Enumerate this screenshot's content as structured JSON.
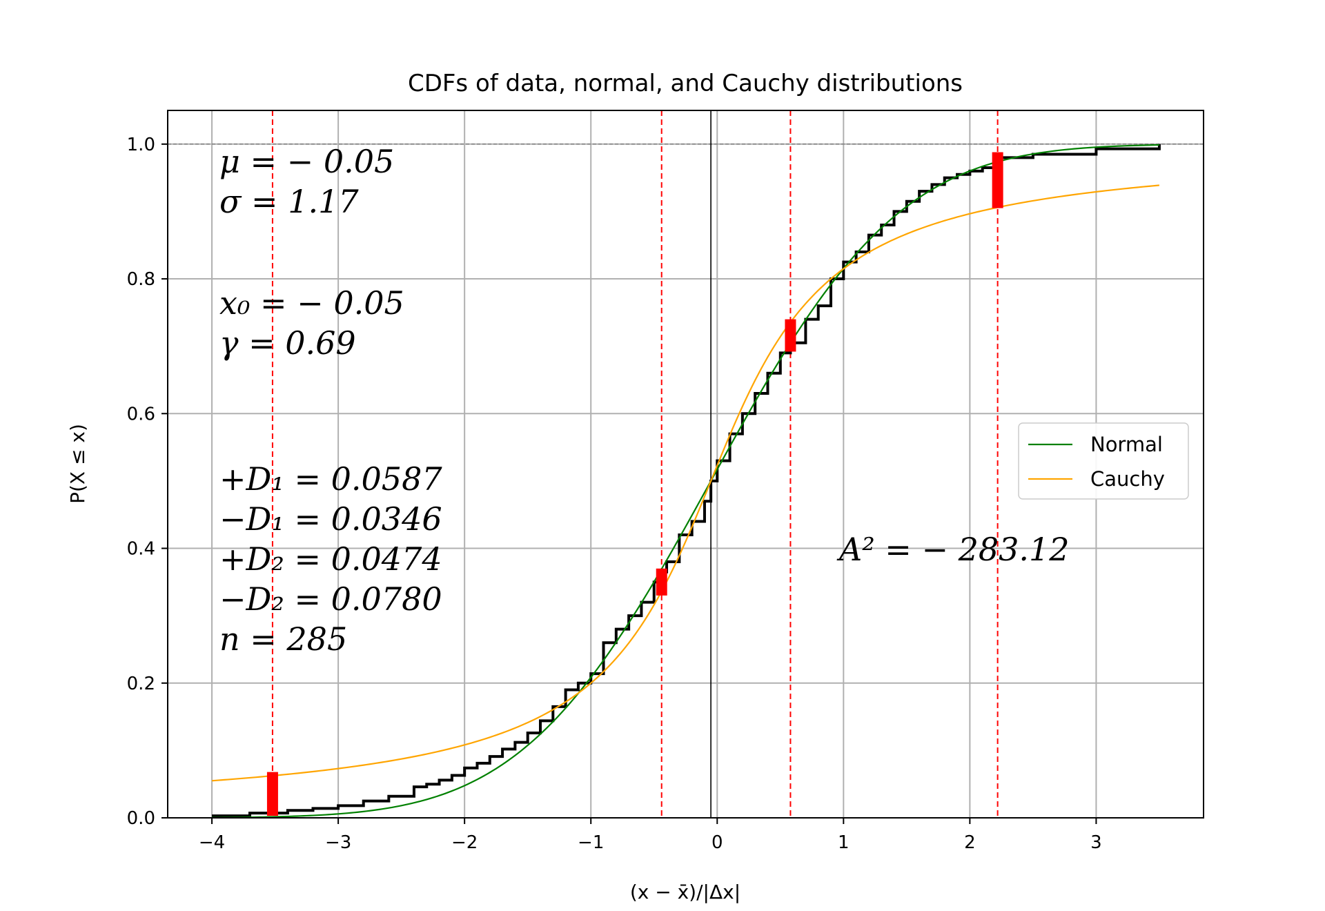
{
  "chart_data": {
    "type": "line",
    "title": "CDFs of data, normal, and Cauchy distributions",
    "xlabel": "(x − x̄)/|Δx|",
    "ylabel": "P(X ≤ x)",
    "xlim": [
      -4.35,
      3.85
    ],
    "ylim": [
      0,
      1.05
    ],
    "xticks": [
      -4,
      -3,
      -2,
      -1,
      0,
      1,
      2,
      3
    ],
    "xtick_labels": [
      "−4",
      "−3",
      "−2",
      "−1",
      "0",
      "1",
      "2",
      "3"
    ],
    "yticks": [
      0.0,
      0.2,
      0.4,
      0.6,
      0.8,
      1.0
    ],
    "ytick_labels": [
      "0.0",
      "0.2",
      "0.4",
      "0.6",
      "0.8",
      "1.0"
    ],
    "grid": true,
    "legend_position": "right",
    "legend": [
      {
        "name": "Normal",
        "color": "#008000"
      },
      {
        "name": "Cauchy",
        "color": "#ffa500"
      }
    ],
    "series": [
      {
        "name": "Normal",
        "kind": "normal_cdf",
        "mu": -0.05,
        "sigma": 1.17,
        "x_range": [
          -4,
          3.5
        ],
        "color": "#008000"
      },
      {
        "name": "Cauchy",
        "kind": "cauchy_cdf",
        "x0": -0.05,
        "gamma": 0.69,
        "x_range": [
          -4,
          3.5
        ],
        "color": "#ffa500"
      },
      {
        "name": "data",
        "kind": "empirical_step",
        "color": "#000000",
        "x": [
          -4.0,
          -3.7,
          -3.4,
          -3.2,
          -3.0,
          -2.8,
          -2.6,
          -2.4,
          -2.3,
          -2.2,
          -2.1,
          -2.0,
          -1.9,
          -1.8,
          -1.7,
          -1.6,
          -1.5,
          -1.4,
          -1.3,
          -1.2,
          -1.1,
          -1.0,
          -0.9,
          -0.8,
          -0.7,
          -0.6,
          -0.5,
          -0.45,
          -0.4,
          -0.3,
          -0.2,
          -0.1,
          -0.05,
          0.0,
          0.1,
          0.2,
          0.3,
          0.4,
          0.5,
          0.58,
          0.7,
          0.8,
          0.9,
          1.0,
          1.1,
          1.2,
          1.3,
          1.4,
          1.5,
          1.6,
          1.7,
          1.8,
          1.9,
          2.0,
          2.1,
          2.22,
          2.5,
          3.0,
          3.5
        ],
        "y": [
          0.003,
          0.007,
          0.011,
          0.014,
          0.018,
          0.025,
          0.032,
          0.046,
          0.05,
          0.056,
          0.063,
          0.074,
          0.081,
          0.091,
          0.102,
          0.112,
          0.126,
          0.144,
          0.165,
          0.19,
          0.2,
          0.214,
          0.26,
          0.28,
          0.3,
          0.32,
          0.35,
          0.365,
          0.38,
          0.42,
          0.44,
          0.47,
          0.5,
          0.53,
          0.57,
          0.6,
          0.63,
          0.66,
          0.69,
          0.705,
          0.74,
          0.76,
          0.8,
          0.825,
          0.84,
          0.865,
          0.88,
          0.9,
          0.915,
          0.93,
          0.94,
          0.95,
          0.955,
          0.96,
          0.965,
          0.98,
          0.985,
          0.993,
          1.0
        ]
      }
    ],
    "vlines": [
      -3.52,
      -0.44,
      0.58,
      2.22
    ],
    "center_line_x": -0.05,
    "reference_hline_y": 1.0,
    "ks_bars": [
      {
        "x": -3.52,
        "y0": 0.003,
        "y1": 0.068
      },
      {
        "x": -0.44,
        "y0": 0.33,
        "y1": 0.37
      },
      {
        "x": 0.58,
        "y0": 0.692,
        "y1": 0.74
      },
      {
        "x": 2.22,
        "y0": 0.905,
        "y1": 0.988
      }
    ],
    "stats_left": [
      "μ = − 0.05",
      "σ = 1.17",
      "x₀ = − 0.05",
      "γ = 0.69",
      "+D₁ = 0.0587",
      "−D₁ = 0.0346",
      "+D₂ = 0.0474",
      "−D₂ = 0.0780",
      "n = 285"
    ],
    "stat_right": "A² = − 283.12"
  }
}
